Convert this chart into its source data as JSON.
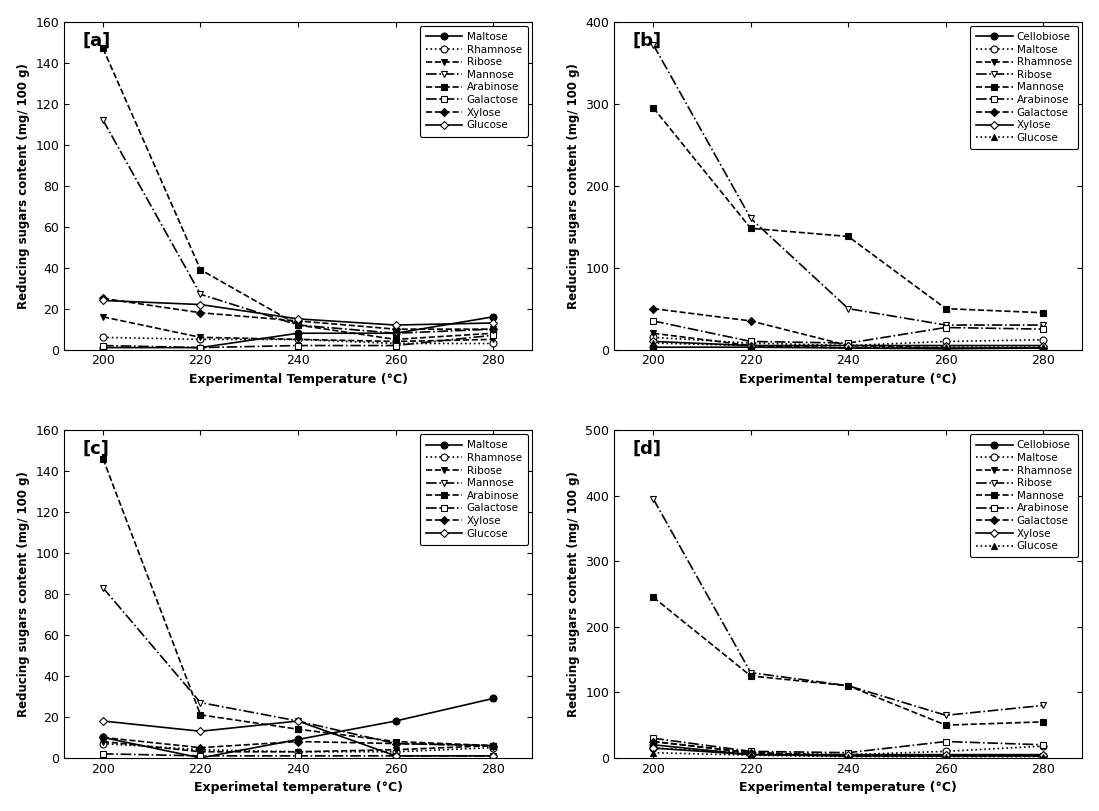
{
  "temps": [
    200,
    220,
    240,
    260,
    280
  ],
  "panel_a": {
    "label": "[a]",
    "xlabel": "Experimental Temperature (°C)",
    "ylabel": "Reducing sugars content (mg/ 100 g)",
    "ylim": [
      0,
      160
    ],
    "yticks": [
      0,
      20,
      40,
      60,
      80,
      100,
      120,
      140,
      160
    ],
    "series": [
      {
        "name": "Maltose",
        "marker": "o",
        "mfc": "black",
        "mec": "black",
        "ls": "-",
        "lw": 1.2,
        "ms": 5,
        "values": [
          1,
          1,
          8,
          8,
          16
        ]
      },
      {
        "name": "Rhamnose",
        "marker": "o",
        "mfc": "white",
        "mec": "black",
        "ls": ":",
        "lw": 1.2,
        "ms": 5,
        "values": [
          6,
          5,
          5,
          3,
          3
        ]
      },
      {
        "name": "Ribose",
        "marker": "v",
        "mfc": "black",
        "mec": "black",
        "ls": "--",
        "lw": 1.2,
        "ms": 5,
        "values": [
          16,
          6,
          5,
          4,
          5
        ]
      },
      {
        "name": "Mannose",
        "marker": "v",
        "mfc": "white",
        "mec": "black",
        "ls": "-.",
        "lw": 1.2,
        "ms": 5,
        "values": [
          112,
          27,
          12,
          8,
          10
        ]
      },
      {
        "name": "Arabinose",
        "marker": "s",
        "mfc": "black",
        "mec": "black",
        "ls": "--",
        "lw": 1.2,
        "ms": 5,
        "values": [
          147,
          39,
          12,
          5,
          8
        ]
      },
      {
        "name": "Galactose",
        "marker": "s",
        "mfc": "white",
        "mec": "black",
        "ls": "-.",
        "lw": 1.2,
        "ms": 5,
        "values": [
          2,
          1,
          2,
          2,
          7
        ]
      },
      {
        "name": "Xylose",
        "marker": "D",
        "mfc": "black",
        "mec": "black",
        "ls": "--",
        "lw": 1.2,
        "ms": 4,
        "values": [
          25,
          18,
          14,
          10,
          10
        ]
      },
      {
        "name": "Glucose",
        "marker": "D",
        "mfc": "white",
        "mec": "black",
        "ls": "-",
        "lw": 1.2,
        "ms": 4,
        "values": [
          24,
          22,
          15,
          12,
          13
        ]
      }
    ]
  },
  "panel_b": {
    "label": "[b]",
    "xlabel": "Experimental temperature (°C)",
    "ylabel": "Reducing sugars content (mg/ 100 g)",
    "ylim": [
      0,
      400
    ],
    "yticks": [
      0,
      100,
      200,
      300,
      400
    ],
    "series": [
      {
        "name": "Cellobiose",
        "marker": "o",
        "mfc": "black",
        "mec": "black",
        "ls": "-",
        "lw": 1.2,
        "ms": 5,
        "values": [
          3,
          3,
          2,
          1,
          2
        ]
      },
      {
        "name": "Maltose",
        "marker": "o",
        "mfc": "white",
        "mec": "black",
        "ls": ":",
        "lw": 1.2,
        "ms": 5,
        "values": [
          15,
          8,
          5,
          10,
          12
        ]
      },
      {
        "name": "Rhamnose",
        "marker": "v",
        "mfc": "black",
        "mec": "black",
        "ls": "--",
        "lw": 1.2,
        "ms": 5,
        "values": [
          20,
          5,
          2,
          2,
          2
        ]
      },
      {
        "name": "Ribose",
        "marker": "v",
        "mfc": "white",
        "mec": "black",
        "ls": "-.",
        "lw": 1.2,
        "ms": 5,
        "values": [
          372,
          160,
          50,
          30,
          30
        ]
      },
      {
        "name": "Mannose",
        "marker": "s",
        "mfc": "black",
        "mec": "black",
        "ls": "--",
        "lw": 1.2,
        "ms": 5,
        "values": [
          295,
          148,
          138,
          50,
          45
        ]
      },
      {
        "name": "Arabinose",
        "marker": "s",
        "mfc": "white",
        "mec": "black",
        "ls": "-.",
        "lw": 1.2,
        "ms": 5,
        "values": [
          35,
          10,
          8,
          27,
          25
        ]
      },
      {
        "name": "Galactose",
        "marker": "D",
        "mfc": "black",
        "mec": "black",
        "ls": "--",
        "lw": 1.2,
        "ms": 4,
        "values": [
          50,
          35,
          5,
          2,
          2
        ]
      },
      {
        "name": "Xylose",
        "marker": "D",
        "mfc": "white",
        "mec": "black",
        "ls": "-",
        "lw": 1.2,
        "ms": 4,
        "values": [
          10,
          5,
          5,
          5,
          5
        ]
      },
      {
        "name": "Glucose",
        "marker": "^",
        "mfc": "black",
        "mec": "black",
        "ls": ":",
        "lw": 1.2,
        "ms": 5,
        "values": [
          8,
          5,
          2,
          3,
          3
        ]
      }
    ]
  },
  "panel_c": {
    "label": "[c]",
    "xlabel": "Experimetal temperature (°C)",
    "ylabel": "Reducing sugars content (mg/ 100 g)",
    "ylim": [
      0,
      160
    ],
    "yticks": [
      0,
      20,
      40,
      60,
      80,
      100,
      120,
      140,
      160
    ],
    "series": [
      {
        "name": "Maltose",
        "marker": "o",
        "mfc": "black",
        "mec": "black",
        "ls": "-",
        "lw": 1.2,
        "ms": 5,
        "values": [
          10,
          0,
          9,
          18,
          29
        ]
      },
      {
        "name": "Rhamnose",
        "marker": "o",
        "mfc": "white",
        "mec": "black",
        "ls": ":",
        "lw": 1.2,
        "ms": 5,
        "values": [
          7,
          4,
          3,
          3,
          5
        ]
      },
      {
        "name": "Ribose",
        "marker": "v",
        "mfc": "black",
        "mec": "black",
        "ls": "--",
        "lw": 1.2,
        "ms": 5,
        "values": [
          8,
          3,
          3,
          4,
          6
        ]
      },
      {
        "name": "Mannose",
        "marker": "v",
        "mfc": "white",
        "mec": "black",
        "ls": "-.",
        "lw": 1.2,
        "ms": 5,
        "values": [
          83,
          27,
          18,
          7,
          6
        ]
      },
      {
        "name": "Arabinose",
        "marker": "s",
        "mfc": "black",
        "mec": "black",
        "ls": "--",
        "lw": 1.2,
        "ms": 5,
        "values": [
          146,
          21,
          14,
          8,
          6
        ]
      },
      {
        "name": "Galactose",
        "marker": "s",
        "mfc": "white",
        "mec": "black",
        "ls": "-.",
        "lw": 1.2,
        "ms": 5,
        "values": [
          2,
          1,
          1,
          1,
          1
        ]
      },
      {
        "name": "Xylose",
        "marker": "D",
        "mfc": "black",
        "mec": "black",
        "ls": "--",
        "lw": 1.2,
        "ms": 4,
        "values": [
          10,
          5,
          8,
          7,
          6
        ]
      },
      {
        "name": "Glucose",
        "marker": "D",
        "mfc": "white",
        "mec": "black",
        "ls": "-",
        "lw": 1.2,
        "ms": 4,
        "values": [
          18,
          13,
          18,
          1,
          1
        ]
      }
    ]
  },
  "panel_d": {
    "label": "[d]",
    "xlabel": "Experimental temperature (°C)",
    "ylabel": "Reducing sugars content (mg/ 100 g)",
    "ylim": [
      0,
      500
    ],
    "yticks": [
      0,
      100,
      200,
      300,
      400,
      500
    ],
    "series": [
      {
        "name": "Cellobiose",
        "marker": "o",
        "mfc": "black",
        "mec": "black",
        "ls": "-",
        "lw": 1.2,
        "ms": 5,
        "values": [
          20,
          5,
          3,
          3,
          3
        ]
      },
      {
        "name": "Maltose",
        "marker": "o",
        "mfc": "white",
        "mec": "black",
        "ls": ":",
        "lw": 1.2,
        "ms": 5,
        "values": [
          15,
          8,
          5,
          10,
          18
        ]
      },
      {
        "name": "Rhamnose",
        "marker": "v",
        "mfc": "black",
        "mec": "black",
        "ls": "--",
        "lw": 1.2,
        "ms": 5,
        "values": [
          25,
          8,
          3,
          3,
          3
        ]
      },
      {
        "name": "Ribose",
        "marker": "v",
        "mfc": "white",
        "mec": "black",
        "ls": "-.",
        "lw": 1.2,
        "ms": 5,
        "values": [
          395,
          130,
          110,
          65,
          80
        ]
      },
      {
        "name": "Mannose",
        "marker": "s",
        "mfc": "black",
        "mec": "black",
        "ls": "--",
        "lw": 1.2,
        "ms": 5,
        "values": [
          245,
          125,
          110,
          50,
          55
        ]
      },
      {
        "name": "Arabinose",
        "marker": "s",
        "mfc": "white",
        "mec": "black",
        "ls": "-.",
        "lw": 1.2,
        "ms": 5,
        "values": [
          30,
          10,
          8,
          25,
          20
        ]
      },
      {
        "name": "Galactose",
        "marker": "D",
        "mfc": "black",
        "mec": "black",
        "ls": "--",
        "lw": 1.2,
        "ms": 4,
        "values": [
          25,
          8,
          3,
          3,
          3
        ]
      },
      {
        "name": "Xylose",
        "marker": "D",
        "mfc": "white",
        "mec": "black",
        "ls": "-",
        "lw": 1.2,
        "ms": 4,
        "values": [
          15,
          5,
          5,
          5,
          5
        ]
      },
      {
        "name": "Glucose",
        "marker": "^",
        "mfc": "black",
        "mec": "black",
        "ls": ":",
        "lw": 1.2,
        "ms": 5,
        "values": [
          8,
          4,
          2,
          2,
          2
        ]
      }
    ]
  }
}
